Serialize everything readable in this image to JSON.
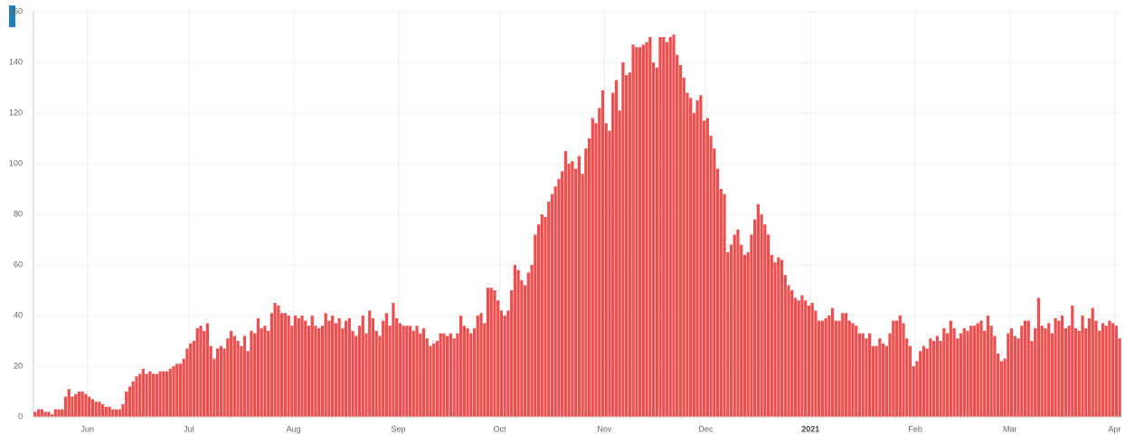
{
  "chart_data": {
    "type": "bar",
    "color": "#ec4f4f",
    "grid": true,
    "ylim": [
      0,
      160
    ],
    "yticks": [
      0,
      20,
      40,
      60,
      80,
      100,
      120,
      140,
      160
    ],
    "categories": [
      null,
      null,
      null,
      null,
      null,
      null,
      null,
      null,
      null,
      null,
      null,
      null,
      null,
      null,
      null,
      null,
      "Jun",
      null,
      null,
      null,
      null,
      null,
      null,
      null,
      null,
      null,
      null,
      null,
      null,
      null,
      null,
      null,
      null,
      null,
      null,
      null,
      null,
      null,
      null,
      null,
      null,
      null,
      null,
      null,
      null,
      null,
      "Jul",
      null,
      null,
      null,
      null,
      null,
      null,
      null,
      null,
      null,
      null,
      null,
      null,
      null,
      null,
      null,
      null,
      null,
      null,
      null,
      null,
      null,
      null,
      null,
      null,
      null,
      null,
      null,
      null,
      null,
      null,
      "Aug",
      null,
      null,
      null,
      null,
      null,
      null,
      null,
      null,
      null,
      null,
      null,
      null,
      null,
      null,
      null,
      null,
      null,
      null,
      null,
      null,
      null,
      null,
      null,
      null,
      null,
      null,
      null,
      null,
      null,
      null,
      "Sep",
      null,
      null,
      null,
      null,
      null,
      null,
      null,
      null,
      null,
      null,
      null,
      null,
      null,
      null,
      null,
      null,
      null,
      null,
      null,
      null,
      null,
      null,
      null,
      null,
      null,
      null,
      null,
      null,
      null,
      "Oct",
      null,
      null,
      null,
      null,
      null,
      null,
      null,
      null,
      null,
      null,
      null,
      null,
      null,
      null,
      null,
      null,
      null,
      null,
      null,
      null,
      null,
      null,
      null,
      null,
      null,
      null,
      null,
      null,
      null,
      null,
      "Nov",
      null,
      null,
      null,
      null,
      null,
      null,
      null,
      null,
      null,
      null,
      null,
      null,
      null,
      null,
      null,
      null,
      null,
      null,
      null,
      null,
      null,
      null,
      null,
      null,
      null,
      null,
      null,
      null,
      null,
      "Dec",
      null,
      null,
      null,
      null,
      null,
      null,
      null,
      null,
      null,
      null,
      null,
      null,
      null,
      null,
      null,
      null,
      null,
      null,
      null,
      null,
      null,
      null,
      null,
      null,
      null,
      null,
      null,
      null,
      null,
      null,
      "2021",
      null,
      null,
      null,
      null,
      null,
      null,
      null,
      null,
      null,
      null,
      null,
      null,
      null,
      null,
      null,
      null,
      null,
      null,
      null,
      null,
      null,
      null,
      null,
      null,
      null,
      null,
      null,
      null,
      null,
      null,
      "Feb",
      null,
      null,
      null,
      null,
      null,
      null,
      null,
      null,
      null,
      null,
      null,
      null,
      null,
      null,
      null,
      null,
      null,
      null,
      null,
      null,
      null,
      null,
      null,
      null,
      null,
      null,
      null,
      "Mar",
      null,
      null,
      null,
      null,
      null,
      null,
      null,
      null,
      null,
      null,
      null,
      null,
      null,
      null,
      null,
      null,
      null,
      null,
      null,
      null,
      null,
      null,
      null,
      null,
      null,
      null,
      null,
      null,
      null,
      null,
      "Apr",
      null
    ],
    "values": [
      2,
      3,
      3,
      2,
      2,
      1,
      3,
      3,
      3,
      8,
      11,
      8,
      9,
      10,
      10,
      9,
      8,
      7,
      6,
      6,
      5,
      4,
      4,
      3,
      3,
      3,
      5,
      10,
      12,
      14,
      16,
      17,
      19,
      17,
      18,
      17,
      17,
      18,
      18,
      18,
      19,
      20,
      21,
      21,
      23,
      27,
      29,
      30,
      35,
      36,
      34,
      37,
      28,
      23,
      27,
      28,
      27,
      31,
      34,
      32,
      30,
      28,
      32,
      26,
      34,
      33,
      39,
      35,
      36,
      34,
      41,
      45,
      44,
      41,
      41,
      40,
      36,
      40,
      39,
      40,
      38,
      36,
      40,
      36,
      35,
      36,
      41,
      38,
      40,
      37,
      39,
      35,
      38,
      39,
      34,
      32,
      36,
      40,
      33,
      42,
      39,
      34,
      32,
      38,
      41,
      36,
      45,
      39,
      37,
      36,
      36,
      36,
      34,
      36,
      33,
      35,
      31,
      28,
      29,
      30,
      33,
      33,
      32,
      33,
      31,
      33,
      40,
      36,
      35,
      33,
      35,
      40,
      41,
      37,
      51,
      51,
      50,
      46,
      42,
      40,
      42,
      50,
      60,
      58,
      54,
      52,
      57,
      60,
      72,
      76,
      80,
      79,
      85,
      88,
      91,
      94,
      97,
      105,
      100,
      101,
      98,
      103,
      96,
      106,
      110,
      118,
      116,
      122,
      129,
      116,
      113,
      128,
      133,
      121,
      140,
      135,
      136,
      147,
      146,
      146,
      147,
      148,
      150,
      140,
      138,
      150,
      150,
      148,
      150,
      151,
      143,
      139,
      134,
      128,
      126,
      120,
      125,
      127,
      117,
      118,
      111,
      106,
      98,
      90,
      88,
      65,
      68,
      72,
      74,
      68,
      64,
      65,
      72,
      78,
      84,
      80,
      76,
      72,
      64,
      61,
      63,
      62,
      56,
      52,
      50,
      47,
      46,
      48,
      46,
      44,
      45,
      42,
      38,
      38,
      39,
      40,
      43,
      38,
      38,
      41,
      41,
      38,
      37,
      36,
      33,
      33,
      31,
      33,
      28,
      28,
      31,
      29,
      28,
      33,
      38,
      38,
      40,
      37,
      31,
      28,
      20,
      22,
      26,
      28,
      27,
      31,
      30,
      32,
      30,
      35,
      33,
      38,
      35,
      31,
      33,
      35,
      34,
      36,
      36,
      37,
      38,
      34,
      40,
      36,
      32,
      25,
      22,
      23,
      33,
      35,
      32,
      31,
      36,
      38,
      38,
      30,
      35,
      47,
      36,
      35,
      37,
      33,
      39,
      38,
      40,
      35,
      36,
      44,
      35,
      34,
      40,
      35,
      39,
      43,
      38,
      34,
      37,
      36,
      38,
      37,
      36,
      31
    ]
  }
}
